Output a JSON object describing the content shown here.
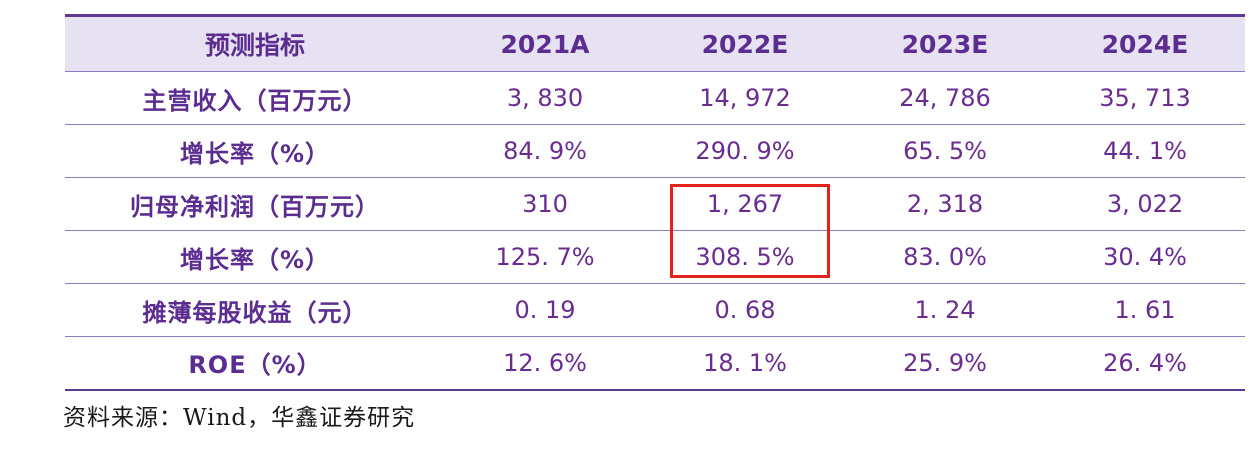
{
  "table": {
    "headers": [
      "预测指标",
      "2021A",
      "2022E",
      "2023E",
      "2024E"
    ],
    "rows": [
      {
        "label": "主营收入（百万元）",
        "values": [
          "3, 830",
          "14, 972",
          "24, 786",
          "35, 713"
        ]
      },
      {
        "label": "增长率（%）",
        "values": [
          "84. 9%",
          "290. 9%",
          "65. 5%",
          "44. 1%"
        ]
      },
      {
        "label": "归母净利润（百万元）",
        "values": [
          "310",
          "1, 267",
          "2, 318",
          "3, 022"
        ]
      },
      {
        "label": "增长率（%）",
        "values": [
          "125. 7%",
          "308. 5%",
          "83. 0%",
          "30. 4%"
        ]
      },
      {
        "label": "摊薄每股收益（元）",
        "values": [
          "0. 19",
          "0. 68",
          "1. 24",
          "1. 61"
        ]
      },
      {
        "label": "ROE（%）",
        "values": [
          "12. 6%",
          "18. 1%",
          "25. 9%",
          "26. 4%"
        ]
      }
    ]
  },
  "annotation": {
    "highlight_description": "red box around 2022E values 1,267 and 308.5%"
  },
  "source": "资料来源：Wind，华鑫证券研究",
  "colors": {
    "text_purple": "#6a2c91",
    "header_text_purple": "#5c2d91",
    "line_purple": "#8c7bc0",
    "border_dark_purple": "#5f3a93",
    "header_bg": "#e7e2f1",
    "highlight_red": "#e3231a"
  }
}
